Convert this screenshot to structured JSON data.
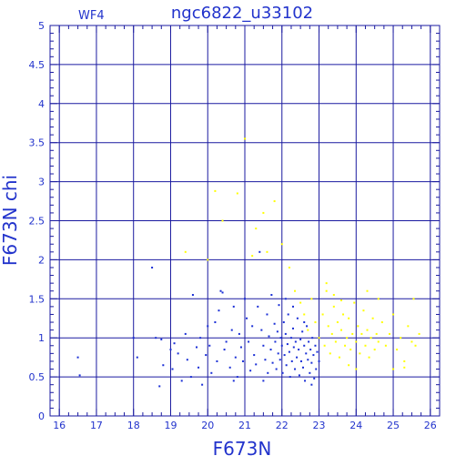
{
  "chart_data": {
    "type": "scatter",
    "title": "ngc6822_u33102",
    "corner_label": "WF4",
    "xlabel": "F673N",
    "ylabel": "F673N chi",
    "xlim": [
      15.75,
      26.25
    ],
    "ylim": [
      0,
      5
    ],
    "grid": true,
    "x_ticks": [
      16,
      17,
      18,
      19,
      20,
      21,
      22,
      23,
      24,
      25,
      26
    ],
    "x_tick_labels": [
      "16",
      "17",
      "18",
      "19",
      "20",
      "21",
      "22",
      "23",
      "24",
      "25",
      "26"
    ],
    "y_ticks": [
      0,
      0.5,
      1,
      1.5,
      2,
      2.5,
      3,
      3.5,
      4,
      4.5,
      5
    ],
    "y_tick_labels": [
      "0",
      "0.5",
      "1",
      "1.5",
      "2",
      "2.5",
      "3",
      "3.5",
      "4",
      "4.5",
      "5"
    ],
    "colors": {
      "axis": "#1a1aa0",
      "grid": "#1a1aa0",
      "text": "#2233cc",
      "blue_points": "#1a2fd6",
      "yellow_points": "#ffff00"
    },
    "series": [
      {
        "color": "#1a2fd6",
        "points": [
          [
            16.5,
            0.75
          ],
          [
            16.55,
            0.52
          ],
          [
            18.0,
            1.0
          ],
          [
            18.1,
            0.75
          ],
          [
            18.5,
            1.9
          ],
          [
            18.6,
            1.0
          ],
          [
            18.7,
            0.38
          ],
          [
            18.75,
            0.98
          ],
          [
            18.8,
            0.65
          ],
          [
            19.0,
            0.85
          ],
          [
            19.05,
            0.6
          ],
          [
            19.1,
            0.93
          ],
          [
            19.2,
            0.8
          ],
          [
            19.3,
            0.45
          ],
          [
            19.4,
            1.05
          ],
          [
            19.45,
            0.72
          ],
          [
            19.55,
            0.5
          ],
          [
            19.6,
            1.55
          ],
          [
            19.7,
            0.88
          ],
          [
            19.75,
            0.62
          ],
          [
            19.8,
            1.0
          ],
          [
            19.85,
            0.4
          ],
          [
            19.95,
            0.78
          ],
          [
            20.0,
            1.15
          ],
          [
            20.05,
            0.9
          ],
          [
            20.1,
            0.55
          ],
          [
            20.2,
            1.2
          ],
          [
            20.25,
            0.7
          ],
          [
            20.3,
            1.35
          ],
          [
            20.35,
            1.6
          ],
          [
            20.4,
            1.58
          ],
          [
            20.45,
            0.85
          ],
          [
            20.5,
            0.95
          ],
          [
            20.6,
            0.62
          ],
          [
            20.65,
            1.1
          ],
          [
            20.7,
            1.4
          ],
          [
            20.75,
            0.75
          ],
          [
            20.8,
            0.5
          ],
          [
            20.85,
            1.05
          ],
          [
            20.9,
            0.88
          ],
          [
            20.95,
            0.7
          ],
          [
            21.0,
            1.5
          ],
          [
            21.05,
            1.25
          ],
          [
            21.1,
            0.95
          ],
          [
            21.15,
            0.58
          ],
          [
            21.2,
            1.15
          ],
          [
            21.25,
            0.78
          ],
          [
            21.3,
            0.66
          ],
          [
            21.35,
            1.4
          ],
          [
            21.4,
            2.1
          ],
          [
            21.45,
            1.1
          ],
          [
            21.5,
            0.9
          ],
          [
            21.55,
            0.72
          ],
          [
            21.6,
            1.3
          ],
          [
            21.62,
            0.55
          ],
          [
            21.65,
            1.02
          ],
          [
            21.7,
            0.85
          ],
          [
            21.72,
            1.55
          ],
          [
            21.75,
            0.68
          ],
          [
            21.8,
            1.18
          ],
          [
            21.82,
            0.95
          ],
          [
            21.85,
            0.6
          ],
          [
            21.88,
            1.08
          ],
          [
            21.9,
            0.8
          ],
          [
            21.92,
            1.42
          ],
          [
            21.95,
            0.72
          ],
          [
            21.97,
            1.0
          ],
          [
            22.0,
            0.9
          ],
          [
            22.02,
            0.55
          ],
          [
            22.05,
            1.2
          ],
          [
            22.07,
            0.78
          ],
          [
            22.1,
            1.05
          ],
          [
            22.12,
            0.65
          ],
          [
            22.15,
            0.92
          ],
          [
            22.17,
            1.3
          ],
          [
            22.2,
            0.82
          ],
          [
            22.22,
            0.5
          ],
          [
            22.25,
            1.0
          ],
          [
            22.27,
            0.7
          ],
          [
            22.3,
            1.12
          ],
          [
            22.32,
            0.88
          ],
          [
            22.35,
            0.6
          ],
          [
            22.37,
            0.95
          ],
          [
            22.4,
            0.75
          ],
          [
            22.42,
            1.25
          ],
          [
            22.45,
            0.85
          ],
          [
            22.47,
            0.52
          ],
          [
            22.5,
            0.98
          ],
          [
            22.52,
            0.7
          ],
          [
            22.55,
            1.08
          ],
          [
            22.57,
            0.62
          ],
          [
            22.6,
            0.9
          ],
          [
            22.62,
            0.45
          ],
          [
            22.65,
            0.8
          ],
          [
            22.67,
            1.15
          ],
          [
            22.7,
            0.72
          ],
          [
            22.72,
            0.95
          ],
          [
            22.75,
            0.55
          ],
          [
            22.77,
            0.85
          ],
          [
            22.8,
            0.68
          ],
          [
            22.82,
            1.0
          ],
          [
            22.85,
            0.78
          ],
          [
            22.87,
            0.48
          ],
          [
            22.9,
            0.9
          ],
          [
            22.92,
            0.6
          ],
          [
            22.95,
            0.82
          ],
          [
            23.0,
            0.7
          ],
          [
            22.1,
            1.5
          ],
          [
            22.3,
            1.4
          ],
          [
            22.6,
            1.2
          ],
          [
            21.5,
            0.45
          ],
          [
            20.7,
            0.45
          ],
          [
            22.8,
            0.4
          ]
        ]
      },
      {
        "color": "#ffff00",
        "points": [
          [
            19.4,
            2.1
          ],
          [
            20.0,
            2.0
          ],
          [
            20.2,
            2.88
          ],
          [
            20.4,
            2.5
          ],
          [
            20.8,
            2.85
          ],
          [
            21.0,
            3.55
          ],
          [
            21.2,
            2.05
          ],
          [
            21.3,
            2.4
          ],
          [
            21.5,
            2.6
          ],
          [
            21.6,
            2.1
          ],
          [
            21.8,
            2.75
          ],
          [
            22.0,
            2.2
          ],
          [
            22.2,
            1.9
          ],
          [
            22.35,
            1.6
          ],
          [
            22.5,
            1.45
          ],
          [
            22.6,
            1.3
          ],
          [
            22.7,
            1.1
          ],
          [
            22.8,
            1.5
          ],
          [
            22.9,
            1.2
          ],
          [
            23.0,
            1.0
          ],
          [
            23.1,
            1.3
          ],
          [
            23.15,
            0.9
          ],
          [
            23.2,
            1.6
          ],
          [
            23.25,
            1.15
          ],
          [
            23.3,
            0.8
          ],
          [
            23.35,
            1.05
          ],
          [
            23.4,
            1.4
          ],
          [
            23.45,
            0.95
          ],
          [
            23.5,
            1.2
          ],
          [
            23.55,
            0.75
          ],
          [
            23.6,
            1.1
          ],
          [
            23.65,
            1.3
          ],
          [
            23.7,
            0.9
          ],
          [
            23.75,
            1.0
          ],
          [
            23.8,
            1.25
          ],
          [
            23.85,
            0.85
          ],
          [
            23.9,
            1.05
          ],
          [
            23.95,
            1.45
          ],
          [
            24.0,
            0.95
          ],
          [
            24.05,
            1.15
          ],
          [
            24.1,
            0.8
          ],
          [
            24.15,
            1.05
          ],
          [
            24.2,
            1.35
          ],
          [
            24.25,
            0.9
          ],
          [
            24.3,
            1.1
          ],
          [
            24.35,
            0.75
          ],
          [
            24.4,
            1.0
          ],
          [
            24.45,
            1.25
          ],
          [
            24.5,
            0.85
          ],
          [
            24.55,
            1.05
          ],
          [
            24.6,
            0.95
          ],
          [
            24.7,
            1.2
          ],
          [
            24.8,
            0.9
          ],
          [
            24.9,
            1.05
          ],
          [
            25.0,
            1.3
          ],
          [
            25.1,
            0.85
          ],
          [
            25.2,
            1.0
          ],
          [
            25.3,
            0.7
          ],
          [
            25.4,
            1.15
          ],
          [
            25.5,
            0.95
          ],
          [
            25.6,
            0.9
          ],
          [
            25.7,
            1.05
          ],
          [
            25.55,
            1.5
          ],
          [
            23.2,
            1.7
          ],
          [
            23.4,
            1.55
          ],
          [
            23.6,
            1.48
          ],
          [
            23.8,
            0.65
          ],
          [
            24.0,
            0.6
          ],
          [
            24.3,
            1.6
          ],
          [
            24.6,
            1.5
          ],
          [
            25.0,
            0.6
          ],
          [
            25.3,
            0.62
          ]
        ]
      }
    ]
  }
}
